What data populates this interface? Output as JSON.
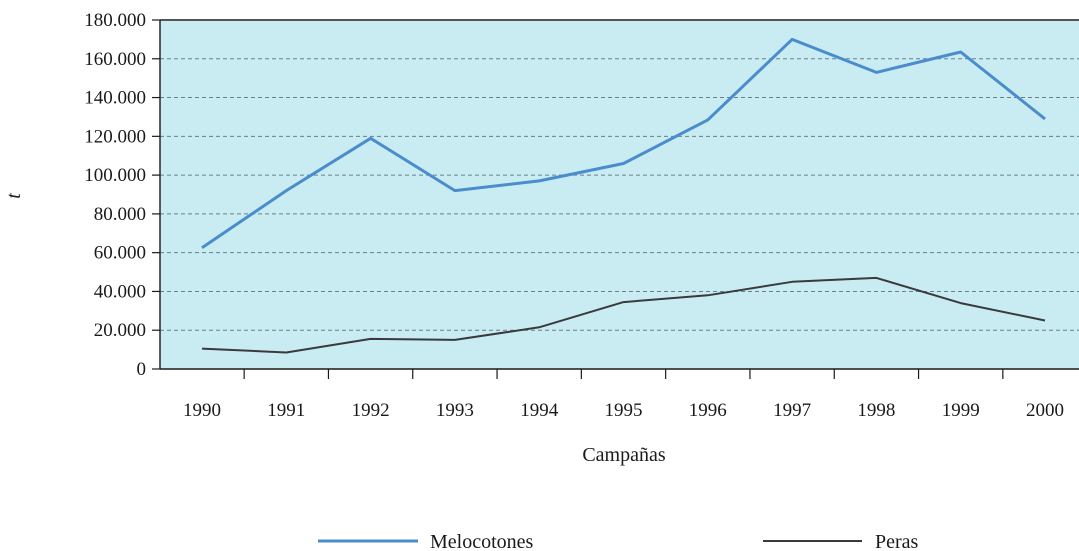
{
  "chart_data": {
    "type": "line",
    "xlabel": "Campañas",
    "ylabel": "t",
    "categories": [
      "1990",
      "1991",
      "1992",
      "1993",
      "1994",
      "1995",
      "1996",
      "1997",
      "1998",
      "1999",
      "2000"
    ],
    "ylim": [
      0,
      180000
    ],
    "yticks": [
      "0",
      "20.000",
      "40.000",
      "60.000",
      "80.000",
      "100.000",
      "120.000",
      "140.000",
      "160.000",
      "180.000"
    ],
    "grid": true,
    "legend": "bottom",
    "plot_background": "#c9ecf3",
    "series": [
      {
        "name": "Melocotones",
        "color": "#4a8ccc",
        "values": [
          62500,
          92000,
          119000,
          92000,
          97000,
          106000,
          128500,
          170000,
          153000,
          163500,
          129000
        ]
      },
      {
        "name": "Peras",
        "color": "#3a3a3a",
        "values": [
          10500,
          8500,
          15500,
          15000,
          21500,
          34500,
          38000,
          45000,
          47000,
          34000,
          25000
        ]
      }
    ]
  }
}
